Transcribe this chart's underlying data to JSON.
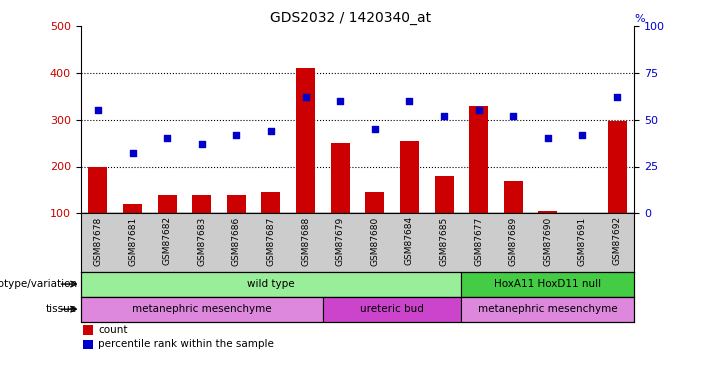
{
  "title": "GDS2032 / 1420340_at",
  "samples": [
    "GSM87678",
    "GSM87681",
    "GSM87682",
    "GSM87683",
    "GSM87686",
    "GSM87687",
    "GSM87688",
    "GSM87679",
    "GSM87680",
    "GSM87684",
    "GSM87685",
    "GSM87677",
    "GSM87689",
    "GSM87690",
    "GSM87691",
    "GSM87692"
  ],
  "counts": [
    200,
    120,
    140,
    140,
    140,
    145,
    410,
    250,
    145,
    255,
    180,
    330,
    170,
    105,
    100,
    297
  ],
  "percentile_ranks": [
    55,
    32,
    40,
    37,
    42,
    44,
    62,
    60,
    45,
    60,
    52,
    55,
    52,
    40,
    42,
    62
  ],
  "ylim_left": [
    100,
    500
  ],
  "ylim_right": [
    0,
    100
  ],
  "yticks_left": [
    100,
    200,
    300,
    400,
    500
  ],
  "yticks_right": [
    0,
    25,
    50,
    75,
    100
  ],
  "bar_color": "#cc0000",
  "dot_color": "#0000cc",
  "bar_bottom": 100,
  "genotype_groups": [
    {
      "label": "wild type",
      "start": 0,
      "end": 11,
      "color": "#99ee99"
    },
    {
      "label": "HoxA11 HoxD11 null",
      "start": 11,
      "end": 16,
      "color": "#44cc44"
    }
  ],
  "tissue_groups": [
    {
      "label": "metanephric mesenchyme",
      "start": 0,
      "end": 7,
      "color": "#dd88dd"
    },
    {
      "label": "ureteric bud",
      "start": 7,
      "end": 11,
      "color": "#cc44cc"
    },
    {
      "label": "metanephric mesenchyme",
      "start": 11,
      "end": 16,
      "color": "#dd88dd"
    }
  ],
  "legend_count_color": "#cc0000",
  "legend_pct_color": "#0000cc",
  "left_axis_color": "#cc0000",
  "right_axis_color": "#0000cc",
  "background_color": "#ffffff",
  "tick_label_area_color": "#cccccc"
}
